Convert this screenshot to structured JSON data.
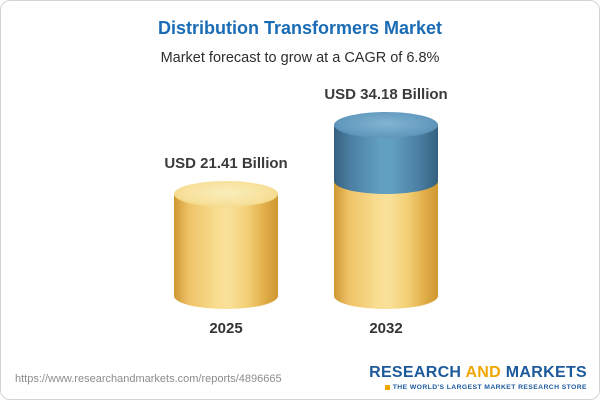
{
  "chart_data": {
    "type": "bar",
    "subtype": "3d-cylinder-stacked",
    "title": "Distribution Transformers Market",
    "subtitle": "Market forecast to grow at a CAGR of 6.8%",
    "cagr_percent": 6.8,
    "unit": "USD Billion",
    "categories": [
      "2025",
      "2032"
    ],
    "values": [
      21.41,
      34.18
    ],
    "value_labels": [
      "USD 21.41 Billion",
      "USD 34.18 Billion"
    ],
    "series": [
      {
        "name": "baseline-2025",
        "values": [
          21.41,
          21.41
        ],
        "color": "#f3d077"
      },
      {
        "name": "growth-to-2032",
        "values": [
          0,
          12.77
        ],
        "color": "#5d93b7"
      }
    ],
    "ylim": [
      0,
      40
    ],
    "legend": "none",
    "gridlines": false
  },
  "footer": {
    "url": "https://www.researchandmarkets.com/reports/4896665",
    "logo": {
      "word1": "RESEARCH",
      "word2": "AND",
      "word3": "MARKETS",
      "tagline": "THE WORLD'S LARGEST MARKET RESEARCH STORE"
    }
  },
  "colors": {
    "title": "#1a6cb5",
    "subtitle": "#2e2e2e",
    "value_label": "#3b3b3b",
    "year_label": "#333333",
    "cylinder_yellow": "#f3d077",
    "cylinder_yellow_top": "#f7e09a",
    "cylinder_blue": "#5d93b7",
    "cylinder_blue_top": "#649bbe",
    "url_text": "#8c8c8c",
    "logo_blue": "#1d5a9b",
    "logo_gold": "#f0a500",
    "card_border": "#d4d4d4"
  }
}
